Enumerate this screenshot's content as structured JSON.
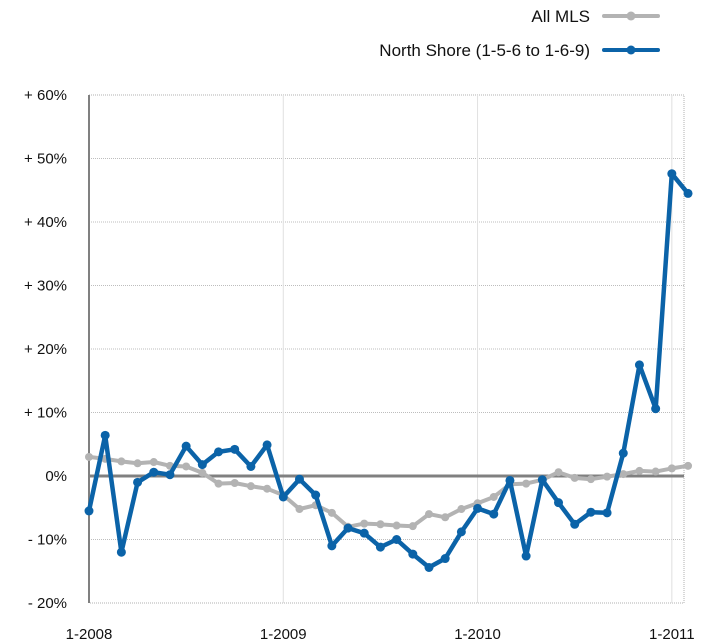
{
  "chart_data": {
    "type": "line",
    "title": "",
    "xlabel": "",
    "ylabel": "",
    "x_ticks": [
      "1-2008",
      "1-2009",
      "1-2010",
      "1-2011"
    ],
    "y_ticks": [
      "+ 60%",
      "+ 50%",
      "+ 40%",
      "+ 30%",
      "+ 20%",
      "+ 10%",
      "0%",
      "- 10%",
      "- 20%"
    ],
    "ylim": [
      -20,
      60
    ],
    "grid": true,
    "legend_position": "top-right",
    "x_units": "months since 1-2008 (0 = 1-2008, 36 = 1-2011)",
    "x": [
      0,
      1,
      2,
      3,
      4,
      5,
      6,
      7,
      8,
      9,
      10,
      11,
      12,
      13,
      14,
      15,
      16,
      17,
      18,
      19,
      20,
      21,
      22,
      23,
      24,
      25,
      26,
      27,
      28,
      29,
      30,
      31,
      32,
      33,
      34,
      35,
      36,
      37
    ],
    "series": [
      {
        "name": "All MLS",
        "color": "#b3b3b3",
        "values": [
          3.0,
          2.7,
          2.3,
          2.0,
          2.2,
          1.6,
          1.5,
          0.5,
          -1.2,
          -1.1,
          -1.6,
          -2.0,
          -3.0,
          -5.2,
          -4.6,
          -5.8,
          -8.0,
          -7.5,
          -7.6,
          -7.8,
          -7.9,
          -6.0,
          -6.5,
          -5.2,
          -4.3,
          -3.3,
          -1.3,
          -1.2,
          -0.6,
          0.6,
          -0.3,
          -0.5,
          -0.1,
          0.3,
          0.8,
          0.7,
          1.2,
          1.6
        ]
      },
      {
        "name": "North Shore (1-5-6 to 1-6-9)",
        "color": "#0b63a8",
        "values": [
          -5.5,
          6.4,
          -12.0,
          -1.0,
          0.6,
          0.2,
          4.7,
          1.8,
          3.8,
          4.2,
          1.5,
          4.9,
          -3.3,
          -0.5,
          -3.0,
          -11.0,
          -8.2,
          -9.0,
          -11.2,
          -10.0,
          -12.3,
          -14.4,
          -13.0,
          -8.8,
          -5.1,
          -6.0,
          -0.7,
          -12.6,
          -0.6,
          -4.2,
          -7.6,
          -5.7,
          -5.8,
          3.6,
          17.5,
          10.6,
          47.6,
          44.5
        ]
      }
    ]
  }
}
